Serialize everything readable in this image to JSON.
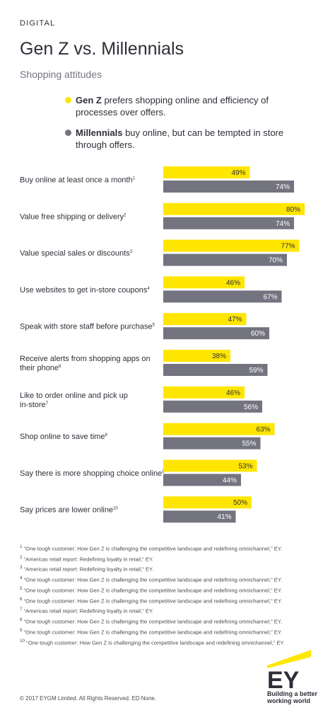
{
  "header": {
    "section": "DIGITAL",
    "title": "Gen Z vs. Millennials",
    "subtitle": "Shopping attitudes"
  },
  "legend": [
    {
      "bold": "Gen Z",
      "text": " prefers shopping online and efficiency of processes over offers.",
      "color": "#ffe600"
    },
    {
      "bold": "Millennials",
      "text": " buy online, but can be tempted in store through offers.",
      "color": "#747480"
    }
  ],
  "chart_data": {
    "type": "bar",
    "orientation": "horizontal",
    "categories": [
      {
        "label": "Buy online at least once a month",
        "note": "1"
      },
      {
        "label": "Value free shipping or delivery",
        "note": "2"
      },
      {
        "label": "Value special sales or discounts",
        "note": "3"
      },
      {
        "label": "Use websites to get in-store coupons",
        "note": "4"
      },
      {
        "label": "Speak with store staff before purchase",
        "note": "5"
      },
      {
        "label": "Receive alerts from shopping apps on their phone",
        "note": "6"
      },
      {
        "label": "Like to order online and pick up in-store",
        "note": "7"
      },
      {
        "label": "Shop online to save time",
        "note": "8"
      },
      {
        "label": "Say there is more shopping choice online",
        "note": "9"
      },
      {
        "label": "Say prices are lower online",
        "note": "10"
      }
    ],
    "series": [
      {
        "name": "Gen Z",
        "color": "#ffe600",
        "values": [
          49,
          80,
          77,
          46,
          47,
          38,
          46,
          63,
          53,
          50
        ]
      },
      {
        "name": "Millennials",
        "color": "#747480",
        "values": [
          74,
          74,
          70,
          67,
          60,
          59,
          56,
          55,
          44,
          41
        ]
      }
    ],
    "value_suffix": "%",
    "xlim": [
      0,
      100
    ]
  },
  "footnotes": [
    {
      "num": "1",
      "text": "“One tough customer: How Gen Z is challenging the competitive landscape and redefining omnichannel,” EY."
    },
    {
      "num": "2",
      "text": "“Americas retail report: Redefining loyalty in retail,” EY."
    },
    {
      "num": "3",
      "text": "“Americas retail report: Redefining loyalty in retail,” EY."
    },
    {
      "num": "4",
      "text": "“One tough customer: How Gen Z is challenging the competitive landscape and redefining omnichannel,” EY."
    },
    {
      "num": "5",
      "text": "“One tough customer: How Gen Z is challenging the competitive landscape and redefining omnichannel,” EY."
    },
    {
      "num": "6",
      "text": "“One tough customer: How Gen Z is challenging the competitive landscape and redefining omnichannel,” EY."
    },
    {
      "num": "7",
      "text": "“Americas retail report: Redefining loyalty in retail,” EY."
    },
    {
      "num": "8",
      "text": "“One tough customer: How Gen Z is challenging the competitive landscape and redefining omnichannel,” EY."
    },
    {
      "num": "9",
      "text": "“One tough customer: How Gen Z is challenging the competitive landscape and redefining omnichannel,” EY."
    },
    {
      "num": "10",
      "text": "“One tough customer: How Gen Z is challenging the competitive landscape and redefining omnichannel,” EY."
    }
  ],
  "footer": {
    "copyright": "© 2017 EYGM Limited. All Rights Reserved. ED None.",
    "logo_text": "EY",
    "tagline_line1": "Building a better",
    "tagline_line2": "working world"
  }
}
